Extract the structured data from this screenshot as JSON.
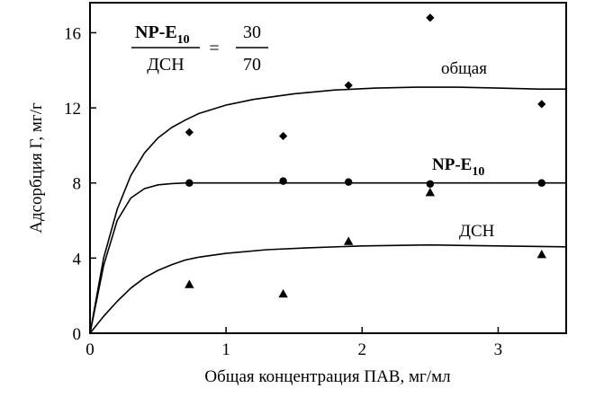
{
  "chart_data": {
    "type": "scatter",
    "xlabel": "Общая концентрация ПАВ, мг/мл",
    "ylabel": "Адсорбция Г, мг/г",
    "xlim": [
      0,
      3.5
    ],
    "ylim": [
      0,
      17.6
    ],
    "x_ticks": [
      "0",
      "1",
      "2",
      "3"
    ],
    "y_ticks": [
      "0",
      "4",
      "8",
      "12",
      "16"
    ],
    "annotation": {
      "numerator": "NP-E",
      "numerator_sub": "10",
      "denominator": "ДСН",
      "equals": "=",
      "ratio_top": "30",
      "ratio_bottom": "70"
    },
    "series": [
      {
        "name": "общая",
        "label": "общая",
        "marker": "diamond",
        "points": [
          [
            0.73,
            10.7
          ],
          [
            1.42,
            10.5
          ],
          [
            1.9,
            13.2
          ],
          [
            2.5,
            16.8
          ],
          [
            3.32,
            12.2
          ]
        ],
        "curve": [
          [
            0,
            0
          ],
          [
            0.1,
            4.0
          ],
          [
            0.2,
            6.6
          ],
          [
            0.3,
            8.4
          ],
          [
            0.4,
            9.6
          ],
          [
            0.5,
            10.4
          ],
          [
            0.6,
            10.95
          ],
          [
            0.7,
            11.35
          ],
          [
            0.8,
            11.7
          ],
          [
            1.0,
            12.15
          ],
          [
            1.2,
            12.45
          ],
          [
            1.5,
            12.75
          ],
          [
            1.8,
            12.95
          ],
          [
            2.1,
            13.05
          ],
          [
            2.4,
            13.1
          ],
          [
            2.7,
            13.1
          ],
          [
            3.0,
            13.05
          ],
          [
            3.3,
            13.0
          ],
          [
            3.5,
            13.0
          ]
        ]
      },
      {
        "name": "NP-E",
        "label": "NP-E",
        "label_sub": "10",
        "marker": "circle",
        "points": [
          [
            0.73,
            8.0
          ],
          [
            1.42,
            8.1
          ],
          [
            1.9,
            8.05
          ],
          [
            2.5,
            7.95
          ],
          [
            3.32,
            8.0
          ]
        ],
        "curve": [
          [
            0,
            0
          ],
          [
            0.1,
            3.6
          ],
          [
            0.2,
            6.0
          ],
          [
            0.3,
            7.2
          ],
          [
            0.4,
            7.7
          ],
          [
            0.5,
            7.9
          ],
          [
            0.6,
            7.97
          ],
          [
            0.7,
            8.0
          ],
          [
            1.0,
            8.0
          ],
          [
            1.5,
            8.0
          ],
          [
            2.0,
            8.0
          ],
          [
            2.5,
            8.0
          ],
          [
            3.0,
            8.0
          ],
          [
            3.5,
            8.0
          ]
        ]
      },
      {
        "name": "ДСН",
        "label": "ДСН",
        "marker": "triangle",
        "points": [
          [
            0.73,
            2.6
          ],
          [
            1.42,
            2.1
          ],
          [
            1.9,
            4.9
          ],
          [
            2.5,
            7.5
          ],
          [
            3.32,
            4.2
          ]
        ],
        "curve": [
          [
            0,
            0
          ],
          [
            0.1,
            0.9
          ],
          [
            0.2,
            1.7
          ],
          [
            0.3,
            2.4
          ],
          [
            0.4,
            2.95
          ],
          [
            0.5,
            3.35
          ],
          [
            0.6,
            3.65
          ],
          [
            0.7,
            3.9
          ],
          [
            0.8,
            4.05
          ],
          [
            1.0,
            4.25
          ],
          [
            1.3,
            4.45
          ],
          [
            1.6,
            4.55
          ],
          [
            2.0,
            4.65
          ],
          [
            2.5,
            4.7
          ],
          [
            3.0,
            4.65
          ],
          [
            3.5,
            4.6
          ]
        ]
      }
    ]
  }
}
